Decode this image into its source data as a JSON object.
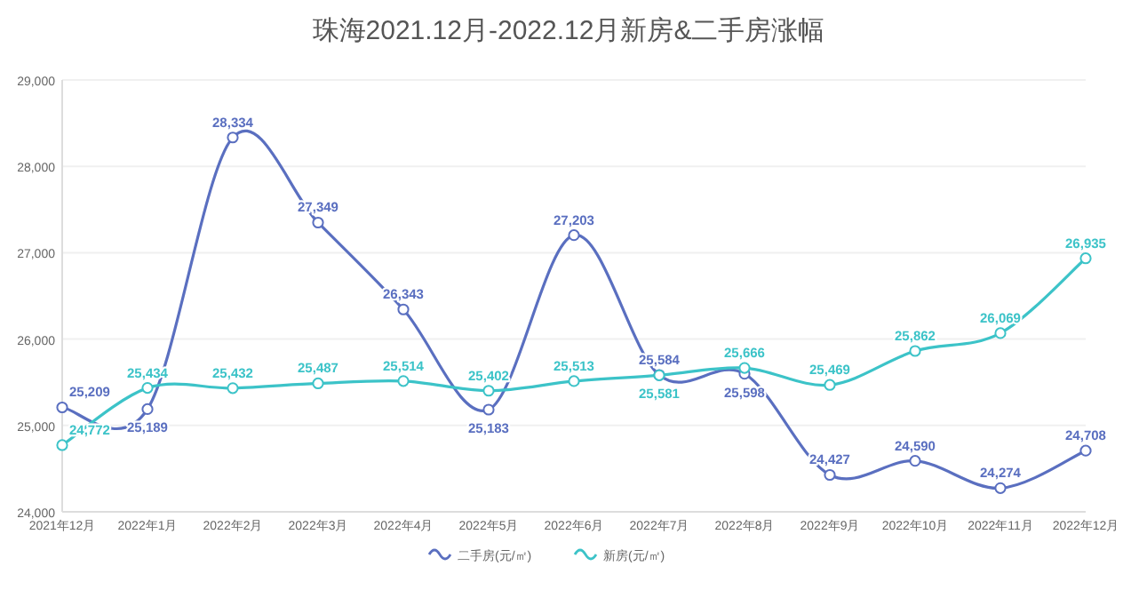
{
  "chart_data": {
    "type": "line",
    "title": "珠海2021.12月-2022.12月新房&二手房涨幅",
    "categories": [
      "2021年12月",
      "2022年1月",
      "2022年2月",
      "2022年3月",
      "2022年4月",
      "2022年5月",
      "2022年6月",
      "2022年7月",
      "2022年8月",
      "2022年9月",
      "2022年10月",
      "2022年11月",
      "2022年12月"
    ],
    "series": [
      {
        "name": "二手房(元/㎡)",
        "color": "#5a6fc0",
        "values": [
          25209,
          25189,
          28334,
          27349,
          26343,
          25183,
          27203,
          25584,
          25598,
          24427,
          24590,
          24274,
          24708
        ],
        "value_labels": [
          "25,209",
          "25,189",
          "28,334",
          "27,349",
          "26,343",
          "25,183",
          "27,203",
          "25,584",
          "25,598",
          "24,427",
          "24,590",
          "24,274",
          "24,708"
        ]
      },
      {
        "name": "新房(元/㎡)",
        "color": "#3cc3c8",
        "values": [
          24772,
          25434,
          25432,
          25487,
          25514,
          25402,
          25513,
          25581,
          25666,
          25469,
          25862,
          26069,
          26935
        ],
        "value_labels": [
          "24,772",
          "25,434",
          "25,432",
          "25,487",
          "25,514",
          "25,402",
          "25,513",
          "25,581",
          "25,666",
          "25,469",
          "25,862",
          "26,069",
          "26,935"
        ]
      }
    ],
    "ylim": [
      24000,
      29000
    ],
    "yticks": [
      {
        "value": 24000,
        "label": "24,000"
      },
      {
        "value": 25000,
        "label": "25,000"
      },
      {
        "value": 26000,
        "label": "26,000"
      },
      {
        "value": 27000,
        "label": "27,000"
      },
      {
        "value": 28000,
        "label": "28,000"
      },
      {
        "value": 29000,
        "label": "29,000"
      }
    ],
    "grid": "y",
    "legend": "bottom",
    "marker": "circle",
    "line_style": "solid"
  }
}
